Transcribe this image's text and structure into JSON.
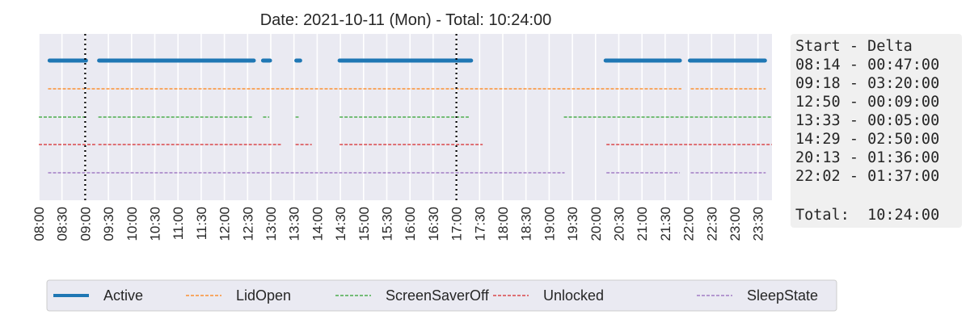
{
  "chart_data": {
    "type": "timeline",
    "title": "Date: 2021-10-11 (Mon) - Total: 10:24:00",
    "xlim": [
      "08:00",
      "23:48"
    ],
    "xticks": [
      "08:00",
      "08:30",
      "09:00",
      "09:30",
      "10:00",
      "10:30",
      "11:00",
      "11:30",
      "12:00",
      "12:30",
      "13:00",
      "13:30",
      "14:00",
      "14:30",
      "15:00",
      "15:30",
      "16:00",
      "16:30",
      "17:00",
      "17:30",
      "18:00",
      "18:30",
      "19:00",
      "19:30",
      "20:00",
      "20:30",
      "21:00",
      "21:30",
      "22:00",
      "22:30",
      "23:00",
      "23:30"
    ],
    "vlines": [
      "09:00",
      "17:00"
    ],
    "grid": true,
    "legend_position": "bottom",
    "series": [
      {
        "name": "Active",
        "color": "#1f77b4",
        "style": "solid",
        "segments": [
          [
            "08:14",
            "09:01"
          ],
          [
            "09:18",
            "12:38"
          ],
          [
            "12:50",
            "12:59"
          ],
          [
            "13:33",
            "13:38"
          ],
          [
            "14:29",
            "17:19"
          ],
          [
            "20:13",
            "21:49"
          ],
          [
            "22:02",
            "23:39"
          ]
        ]
      },
      {
        "name": "LidOpen",
        "color": "#ff7f0e",
        "style": "dashed",
        "segments": [
          [
            "08:12",
            "21:51"
          ],
          [
            "22:03",
            "23:40"
          ]
        ]
      },
      {
        "name": "ScreenSaverOff",
        "color": "#2ca02c",
        "style": "dashed",
        "segments": [
          [
            "08:00",
            "08:59"
          ],
          [
            "09:17",
            "12:36"
          ],
          [
            "12:50",
            "12:58"
          ],
          [
            "13:32",
            "13:36"
          ],
          [
            "14:29",
            "17:16"
          ],
          [
            "19:19",
            "23:48"
          ]
        ]
      },
      {
        "name": "Unlocked",
        "color": "#d62728",
        "style": "dashed",
        "segments": [
          [
            "08:00",
            "09:13"
          ],
          [
            "09:17",
            "13:13"
          ],
          [
            "13:32",
            "13:53"
          ],
          [
            "14:29",
            "17:34"
          ],
          [
            "20:14",
            "23:48"
          ]
        ]
      },
      {
        "name": "SleepState",
        "color": "#9467bd",
        "style": "dashed",
        "segments": [
          [
            "08:12",
            "19:20"
          ],
          [
            "20:14",
            "21:49"
          ],
          [
            "22:03",
            "23:40"
          ]
        ]
      }
    ]
  },
  "summary": {
    "header": "Start - Delta",
    "rows": [
      "08:14 - 00:47:00",
      "09:18 - 03:20:00",
      "12:50 - 00:09:00",
      "13:33 - 00:05:00",
      "14:29 - 02:50:00",
      "20:13 - 01:36:00",
      "22:02 - 01:37:00"
    ],
    "total": "Total:  10:24:00"
  }
}
